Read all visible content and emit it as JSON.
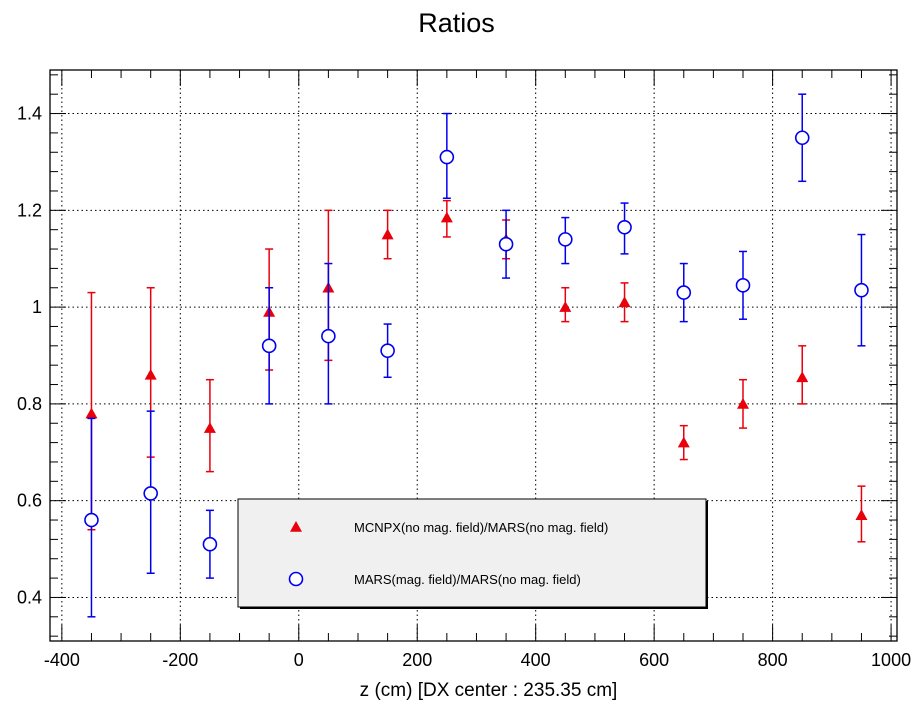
{
  "chart_data": {
    "type": "scatter",
    "title": "Ratios",
    "xlabel": "z (cm) [DX center : 235.35 cm]",
    "ylabel": "",
    "xlim": [
      -420,
      1010
    ],
    "ylim": [
      0.31,
      1.49
    ],
    "grid": true,
    "legend_position": "bottom-center",
    "xticks": [
      -400,
      -200,
      0,
      200,
      400,
      600,
      800,
      1000
    ],
    "xtick_labels": [
      "-400",
      "-200",
      "0",
      "200",
      "400",
      "600",
      "800",
      "1000"
    ],
    "yticks": [
      0.4,
      0.6,
      0.8,
      1.0,
      1.2,
      1.4
    ],
    "ytick_labels": [
      "0.4",
      "0.6",
      "0.8",
      "1",
      "1.2",
      "1.4"
    ],
    "series": [
      {
        "name": "MCNPX(no mag. field)/MARS(no mag. field)",
        "marker": "triangle",
        "color": "#e8000b",
        "points": [
          {
            "x": -350,
            "y": 0.78,
            "lo": 0.54,
            "hi": 1.03
          },
          {
            "x": -250,
            "y": 0.86,
            "lo": 0.69,
            "hi": 1.04
          },
          {
            "x": -150,
            "y": 0.75,
            "lo": 0.66,
            "hi": 0.85
          },
          {
            "x": -50,
            "y": 0.99,
            "lo": 0.87,
            "hi": 1.12
          },
          {
            "x": 50,
            "y": 1.04,
            "lo": 0.89,
            "hi": 1.2
          },
          {
            "x": 150,
            "y": 1.15,
            "lo": 1.1,
            "hi": 1.2
          },
          {
            "x": 250,
            "y": 1.185,
            "lo": 1.145,
            "hi": 1.22
          },
          {
            "x": 350,
            "y": 1.14,
            "lo": 1.1,
            "hi": 1.18
          },
          {
            "x": 450,
            "y": 1.0,
            "lo": 0.97,
            "hi": 1.04
          },
          {
            "x": 550,
            "y": 1.01,
            "lo": 0.97,
            "hi": 1.05
          },
          {
            "x": 650,
            "y": 0.72,
            "lo": 0.685,
            "hi": 0.755
          },
          {
            "x": 750,
            "y": 0.8,
            "lo": 0.75,
            "hi": 0.85
          },
          {
            "x": 850,
            "y": 0.855,
            "lo": 0.8,
            "hi": 0.92
          },
          {
            "x": 950,
            "y": 0.57,
            "lo": 0.515,
            "hi": 0.63
          }
        ]
      },
      {
        "name": "MARS(mag. field)/MARS(no mag. field)",
        "marker": "open-circle",
        "color": "#0000f0",
        "points": [
          {
            "x": -350,
            "y": 0.56,
            "lo": 0.36,
            "hi": 0.77
          },
          {
            "x": -250,
            "y": 0.615,
            "lo": 0.45,
            "hi": 0.785
          },
          {
            "x": -150,
            "y": 0.51,
            "lo": 0.44,
            "hi": 0.58
          },
          {
            "x": -50,
            "y": 0.92,
            "lo": 0.8,
            "hi": 1.04
          },
          {
            "x": 50,
            "y": 0.94,
            "lo": 0.8,
            "hi": 1.09
          },
          {
            "x": 150,
            "y": 0.91,
            "lo": 0.855,
            "hi": 0.965
          },
          {
            "x": 250,
            "y": 1.31,
            "lo": 1.225,
            "hi": 1.4
          },
          {
            "x": 350,
            "y": 1.13,
            "lo": 1.06,
            "hi": 1.2
          },
          {
            "x": 450,
            "y": 1.14,
            "lo": 1.09,
            "hi": 1.185
          },
          {
            "x": 550,
            "y": 1.165,
            "lo": 1.11,
            "hi": 1.215
          },
          {
            "x": 650,
            "y": 1.03,
            "lo": 0.97,
            "hi": 1.09
          },
          {
            "x": 750,
            "y": 1.045,
            "lo": 0.975,
            "hi": 1.115
          },
          {
            "x": 850,
            "y": 1.35,
            "lo": 1.26,
            "hi": 1.44
          },
          {
            "x": 950,
            "y": 1.035,
            "lo": 0.92,
            "hi": 1.15
          }
        ]
      }
    ]
  }
}
